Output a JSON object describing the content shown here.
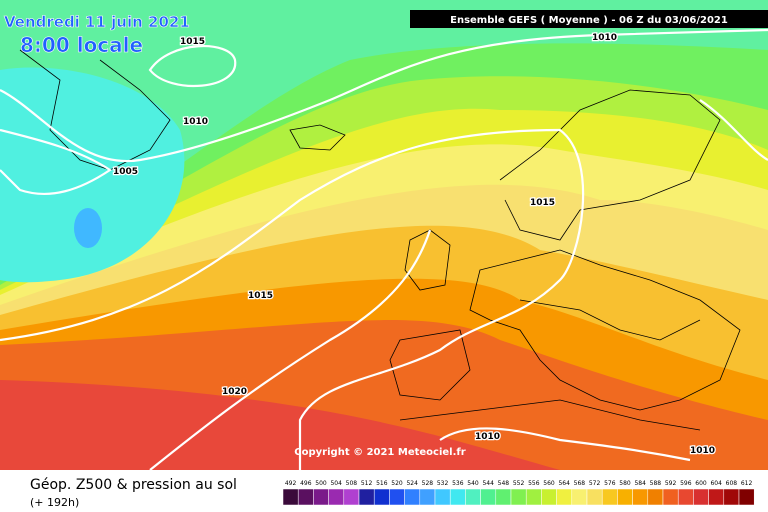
{
  "header": {
    "date": "Vendredi 11 juin 2021",
    "time": "8:00 locale",
    "model": "Ensemble GEFS  ( Moyenne )  -  06 Z du 03/06/2021"
  },
  "isobars": [
    {
      "label": "1015"
    },
    {
      "label": "1010"
    },
    {
      "label": "1005"
    },
    {
      "label": "1015"
    },
    {
      "label": "1015"
    },
    {
      "label": "1020"
    },
    {
      "label": "1010"
    },
    {
      "label": "1010"
    },
    {
      "label": "1010"
    }
  ],
  "copyright": "Copyright © 2021 Meteociel.fr",
  "footer": {
    "title": "Géop. Z500 & pression au sol",
    "lead": "(+ 192h)"
  },
  "legend": {
    "levels": [
      492,
      496,
      500,
      504,
      508,
      512,
      516,
      520,
      524,
      528,
      532,
      536,
      540,
      544,
      548,
      552,
      556,
      560,
      564,
      568,
      572,
      576,
      580,
      584,
      588,
      592,
      596,
      600,
      604,
      608,
      612
    ],
    "colors": [
      "#3a0a3a",
      "#5a1060",
      "#7a1a8a",
      "#9a2ab0",
      "#b040d0",
      "#2020a0",
      "#1030d0",
      "#2050f0",
      "#3080ff",
      "#40a0ff",
      "#40c8ff",
      "#40e8f0",
      "#50f0c0",
      "#50f090",
      "#60f070",
      "#80f050",
      "#a0f040",
      "#c8f030",
      "#f0f040",
      "#f8f070",
      "#f8e060",
      "#f8c820",
      "#f8b000",
      "#f89800",
      "#f08000",
      "#f06020",
      "#e84830",
      "#d83030",
      "#c01818",
      "#a00808",
      "#800000"
    ]
  }
}
